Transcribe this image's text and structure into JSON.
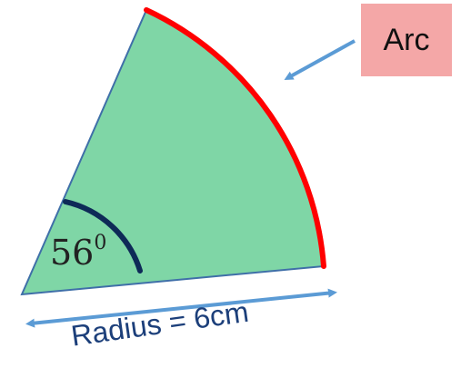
{
  "labels": {
    "arc": "Arc",
    "angle_value": "56",
    "angle_superscript": "0",
    "radius": "Radius = 6cm"
  },
  "colors": {
    "sector_fill": "#7fd6a6",
    "sector_edge": "#3f6fa8",
    "arc_highlight": "#ff0000",
    "angle_marker": "#0e2a57",
    "pointer_arrows": "#5b9bd5",
    "arc_label_background": "#f4a7a7",
    "radius_text": "#1c3f7a"
  },
  "icons": {
    "arc_pointer": "arrow-icon",
    "radius_measure": "double-arrow-icon"
  }
}
